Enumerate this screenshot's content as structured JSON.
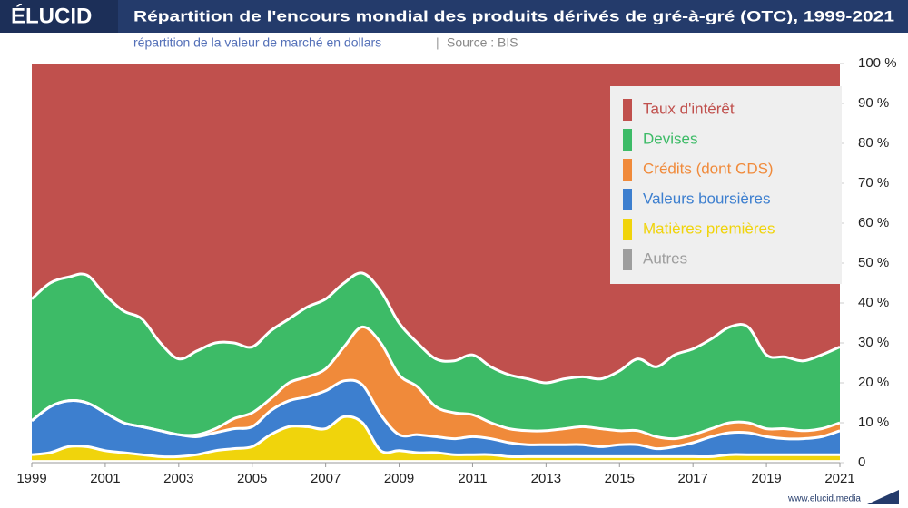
{
  "brand": "ÉLUCID",
  "footer": "www.elucid.media",
  "chart_data": {
    "type": "stacked-area",
    "title": "Répartition de l'encours mondial des produits dérivés de gré-à-gré (OTC), 1999-2021",
    "subtitle": "répartition de la valeur de marché en dollars",
    "source": "Source : BIS",
    "x": [
      1999,
      1999.5,
      2000,
      2000.5,
      2001,
      2001.5,
      2002,
      2002.5,
      2003,
      2003.5,
      2004,
      2004.5,
      2005,
      2005.5,
      2006,
      2006.5,
      2007,
      2007.5,
      2008,
      2008.5,
      2009,
      2009.5,
      2010,
      2010.5,
      2011,
      2011.5,
      2012,
      2012.5,
      2013,
      2013.5,
      2014,
      2014.5,
      2015,
      2015.5,
      2016,
      2016.5,
      2017,
      2017.5,
      2018,
      2018.5,
      2019,
      2019.5,
      2020,
      2020.5,
      2021
    ],
    "xlim": [
      1999,
      2021
    ],
    "xticks": [
      1999,
      2001,
      2003,
      2005,
      2007,
      2009,
      2011,
      2013,
      2015,
      2017,
      2019,
      2021
    ],
    "ylim": [
      0,
      100
    ],
    "yticks": [
      0,
      {
        "value": 10,
        "label": "10 %"
      },
      {
        "value": 20,
        "label": "20 %"
      },
      {
        "value": 30,
        "label": "30 %"
      },
      {
        "value": 40,
        "label": "40 %"
      },
      {
        "value": 50,
        "label": "50 %"
      },
      {
        "value": 60,
        "label": "60 %"
      },
      {
        "value": 70,
        "label": "70 %"
      },
      {
        "value": 80,
        "label": "80 %"
      },
      {
        "value": 90,
        "label": "90 %"
      },
      {
        "value": 100,
        "label": "100 %"
      }
    ],
    "legend": "top-right",
    "series": [
      {
        "name": "Taux d'intérêt",
        "color": "#c0504d",
        "values": [
          59,
          55,
          53.5,
          53,
          58,
          62,
          64,
          70,
          74,
          72,
          70,
          70,
          71,
          67,
          64,
          61,
          59,
          55,
          52.5,
          57,
          65,
          70,
          74,
          74.5,
          73,
          76,
          78,
          79,
          80,
          79,
          78.5,
          79,
          77,
          74,
          76,
          73,
          71.5,
          69,
          66,
          66,
          73,
          73.5,
          74.5,
          73,
          71
        ]
      },
      {
        "name": "Devises",
        "color": "#3dbb67",
        "values": [
          30.5,
          31,
          31,
          32,
          29.5,
          28,
          27,
          22,
          19,
          21,
          21.5,
          19,
          16.5,
          17,
          16,
          17.5,
          17.5,
          16,
          13.5,
          13,
          13,
          11,
          12,
          13,
          15,
          14,
          13.5,
          13,
          12,
          12.5,
          12.5,
          12.5,
          15,
          18,
          17.5,
          21,
          21.5,
          22.5,
          24,
          24,
          18.5,
          18,
          17.5,
          18.5,
          19
        ]
      },
      {
        "name": "Crédits (dont CDS)",
        "color": "#f08a3a",
        "values": [
          0,
          0,
          0,
          0,
          0,
          0,
          0,
          0,
          0,
          0.5,
          1,
          2.5,
          3.5,
          3,
          4.5,
          5,
          5.5,
          8.5,
          14.5,
          18,
          15,
          12,
          7.5,
          6.5,
          5.5,
          4,
          3.5,
          3.5,
          3.5,
          4,
          4.5,
          4.5,
          3.5,
          3.5,
          3,
          2,
          2,
          2,
          2.5,
          2.5,
          2,
          2.5,
          2,
          2,
          2
        ]
      },
      {
        "name": "Valeurs boursières",
        "color": "#3d7fcf",
        "values": [
          8.5,
          11.5,
          11.5,
          11,
          9.5,
          7.5,
          7,
          6.5,
          5.5,
          4.5,
          4.5,
          5,
          5,
          6,
          6.5,
          7.5,
          9.5,
          9,
          9.5,
          9,
          4,
          4.5,
          4,
          4,
          4.5,
          4,
          3.5,
          3,
          3,
          3,
          3,
          2.5,
          3,
          3,
          2,
          2.5,
          3.5,
          5,
          5.5,
          5.5,
          4.5,
          4,
          4,
          4.5,
          6
        ]
      },
      {
        "name": "Matières premières",
        "color": "#f0d40c",
        "values": [
          1.7,
          2.2,
          3.7,
          3.7,
          2.7,
          2.2,
          1.7,
          1.2,
          1.2,
          1.7,
          2.7,
          3.2,
          3.7,
          6.7,
          8.7,
          8.7,
          8.2,
          11.2,
          9.7,
          2.7,
          2.7,
          2.2,
          2.2,
          1.7,
          1.7,
          1.7,
          1.2,
          1.2,
          1.2,
          1.2,
          1.2,
          1.2,
          1.2,
          1.2,
          1.2,
          1.2,
          1.2,
          1.2,
          1.7,
          1.7,
          1.7,
          1.7,
          1.7,
          1.7,
          1.7
        ]
      },
      {
        "name": "Autres",
        "color": "#9e9e9e",
        "values": [
          0.3,
          0.3,
          0.3,
          0.3,
          0.3,
          0.3,
          0.3,
          0.3,
          0.3,
          0.3,
          0.3,
          0.3,
          0.3,
          0.3,
          0.3,
          0.3,
          0.3,
          0.3,
          0.3,
          0.3,
          0.3,
          0.3,
          0.3,
          0.3,
          0.3,
          0.3,
          0.3,
          0.3,
          0.3,
          0.3,
          0.3,
          0.3,
          0.3,
          0.3,
          0.3,
          0.3,
          0.3,
          0.3,
          0.3,
          0.3,
          0.3,
          0.3,
          0.3,
          0.3,
          0.3
        ]
      }
    ]
  }
}
